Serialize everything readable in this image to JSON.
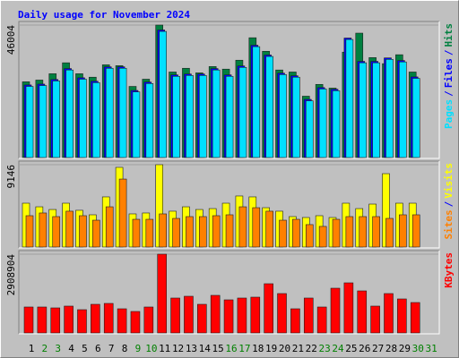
{
  "title": "Daily usage for November 2024",
  "legend_separator": "/",
  "chart_data": [
    {
      "type": "bar",
      "ylim": [
        0,
        46004
      ],
      "yticks": [
        46004
      ],
      "series": [
        {
          "name": "Hits",
          "color": "#008040",
          "values": [
            26300,
            26900,
            29100,
            32900,
            29100,
            27900,
            32200,
            31900,
            24700,
            27200,
            46004,
            29700,
            31000,
            29400,
            31600,
            30700,
            33800,
            41600,
            36900,
            30400,
            29700,
            21300,
            25400,
            24100,
            36600,
            43200,
            34700,
            32600,
            35700,
            29700,
            null
          ]
        },
        {
          "name": "Files",
          "color": "#0000ff",
          "values": [
            25200,
            25500,
            27100,
            30900,
            27700,
            26500,
            31500,
            31500,
            23300,
            26200,
            44300,
            28700,
            29000,
            29000,
            30900,
            28700,
            31800,
            39000,
            35600,
            29300,
            28400,
            20200,
            24300,
            23700,
            41500,
            33400,
            33400,
            34600,
            33700,
            28000,
            null
          ]
        },
        {
          "name": "Pages",
          "color": "#00e0ff",
          "values": [
            24700,
            25000,
            26600,
            30400,
            27200,
            26000,
            31000,
            31000,
            22800,
            25700,
            43800,
            28200,
            28500,
            28500,
            30400,
            28200,
            31300,
            38500,
            35100,
            28800,
            27900,
            19700,
            23800,
            23200,
            41000,
            32900,
            32900,
            34100,
            33200,
            27500,
            null
          ]
        }
      ]
    },
    {
      "type": "bar",
      "ylim": [
        0,
        9146
      ],
      "yticks": [
        9146
      ],
      "series": [
        {
          "name": "Visits",
          "color": "#ffff00",
          "values": [
            4870,
            4470,
            4170,
            4870,
            4080,
            3580,
            5570,
            8850,
            3680,
            3780,
            9146,
            3980,
            4470,
            4170,
            4270,
            4870,
            5670,
            5570,
            4370,
            3980,
            3380,
            3280,
            3480,
            3280,
            4870,
            4270,
            4770,
            8150,
            4870,
            4870,
            null
          ]
        },
        {
          "name": "Sites",
          "color": "#ff8000",
          "values": [
            3480,
            3780,
            3380,
            3980,
            3480,
            2980,
            4470,
            7550,
            3080,
            3080,
            3680,
            3180,
            3380,
            3380,
            3480,
            3580,
            4470,
            4370,
            3980,
            2980,
            3080,
            2490,
            2290,
            3080,
            3380,
            3380,
            3380,
            3180,
            3580,
            3580,
            null
          ]
        }
      ]
    },
    {
      "type": "bar",
      "ylim": [
        0,
        2908904
      ],
      "yticks": [
        2908904
      ],
      "categories": [
        "1",
        "2",
        "3",
        "4",
        "5",
        "6",
        "7",
        "8",
        "9",
        "10",
        "11",
        "12",
        "13",
        "14",
        "15",
        "16",
        "17",
        "18",
        "19",
        "20",
        "21",
        "22",
        "23",
        "24",
        "25",
        "26",
        "27",
        "28",
        "29",
        "30",
        "31"
      ],
      "category_colors": [
        "#000000",
        "#008000",
        "#008000",
        "#000000",
        "#000000",
        "#000000",
        "#000000",
        "#000000",
        "#008000",
        "#008000",
        "#000000",
        "#000000",
        "#000000",
        "#000000",
        "#000000",
        "#008000",
        "#008000",
        "#000000",
        "#000000",
        "#000000",
        "#000000",
        "#000000",
        "#008000",
        "#008000",
        "#000000",
        "#000000",
        "#000000",
        "#000000",
        "#000000",
        "#008000",
        "#008000"
      ],
      "series": [
        {
          "name": "KBytes",
          "color": "#ff0000",
          "values": [
            958600,
            958600,
            925600,
            991700,
            859500,
            1057800,
            1090800,
            892500,
            793300,
            958600,
            2908904,
            1289200,
            1355300,
            1057800,
            1388400,
            1223100,
            1289200,
            1322200,
            1818100,
            1454500,
            892500,
            1289200,
            958600,
            1652800,
            1851100,
            1553600,
            991700,
            1454500,
            1256100,
            1123900,
            null
          ]
        }
      ]
    }
  ]
}
